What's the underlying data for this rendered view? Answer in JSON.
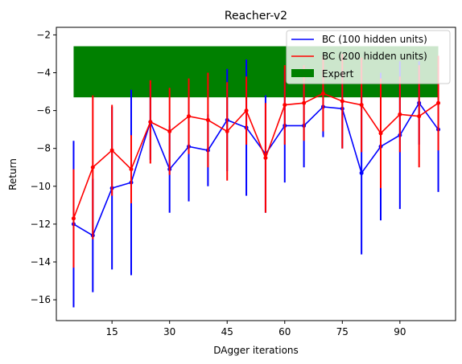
{
  "chart_data": {
    "type": "line",
    "title": "Reacher-v2",
    "xlabel": "DAgger iterations",
    "ylabel": "Return",
    "xlim": [
      0.5,
      104.5
    ],
    "ylim": [
      -17.1,
      -1.6
    ],
    "xticks": [
      15,
      30,
      45,
      60,
      75,
      90
    ],
    "yticks": [
      -16,
      -14,
      -12,
      -10,
      -8,
      -6,
      -4,
      -2
    ],
    "x": [
      5,
      10,
      15,
      20,
      25,
      30,
      35,
      40,
      45,
      50,
      55,
      60,
      65,
      70,
      75,
      80,
      85,
      90,
      95,
      100
    ],
    "expert": {
      "label": "Expert",
      "color": "#008000",
      "x_range": [
        5,
        100
      ],
      "y_range": [
        -5.3,
        -2.6
      ]
    },
    "series": [
      {
        "name": "BC (100 hidden units)",
        "color": "#0000ff",
        "values": [
          -12.0,
          -12.6,
          -10.1,
          -9.8,
          -6.6,
          -9.1,
          -7.9,
          -8.1,
          -6.5,
          -6.9,
          -8.3,
          -6.8,
          -6.8,
          -5.8,
          -5.9,
          -9.3,
          -7.9,
          -7.3,
          -5.6,
          -7.0
        ],
        "errors": [
          4.4,
          3.0,
          4.3,
          4.9,
          2.0,
          2.3,
          2.9,
          1.9,
          2.7,
          3.6,
          3.1,
          3.0,
          2.2,
          1.6,
          2.1,
          4.3,
          3.9,
          3.9,
          2.2,
          3.3
        ]
      },
      {
        "name": "BC (200 hidden units)",
        "color": "#ff0000",
        "values": [
          -11.7,
          -9.0,
          -8.1,
          -9.1,
          -6.6,
          -7.1,
          -6.3,
          -6.5,
          -7.1,
          -6.0,
          -8.5,
          -5.7,
          -5.6,
          -5.1,
          -5.5,
          -5.7,
          -7.2,
          -6.2,
          -6.3,
          -5.6
        ],
        "errors": [
          2.6,
          3.8,
          2.4,
          1.8,
          2.2,
          2.3,
          2.0,
          2.5,
          2.6,
          1.8,
          2.9,
          2.1,
          2.0,
          2.0,
          2.5,
          2.5,
          2.9,
          2.0,
          2.7,
          2.5
        ]
      }
    ],
    "legend": "top-right",
    "grid": false
  }
}
